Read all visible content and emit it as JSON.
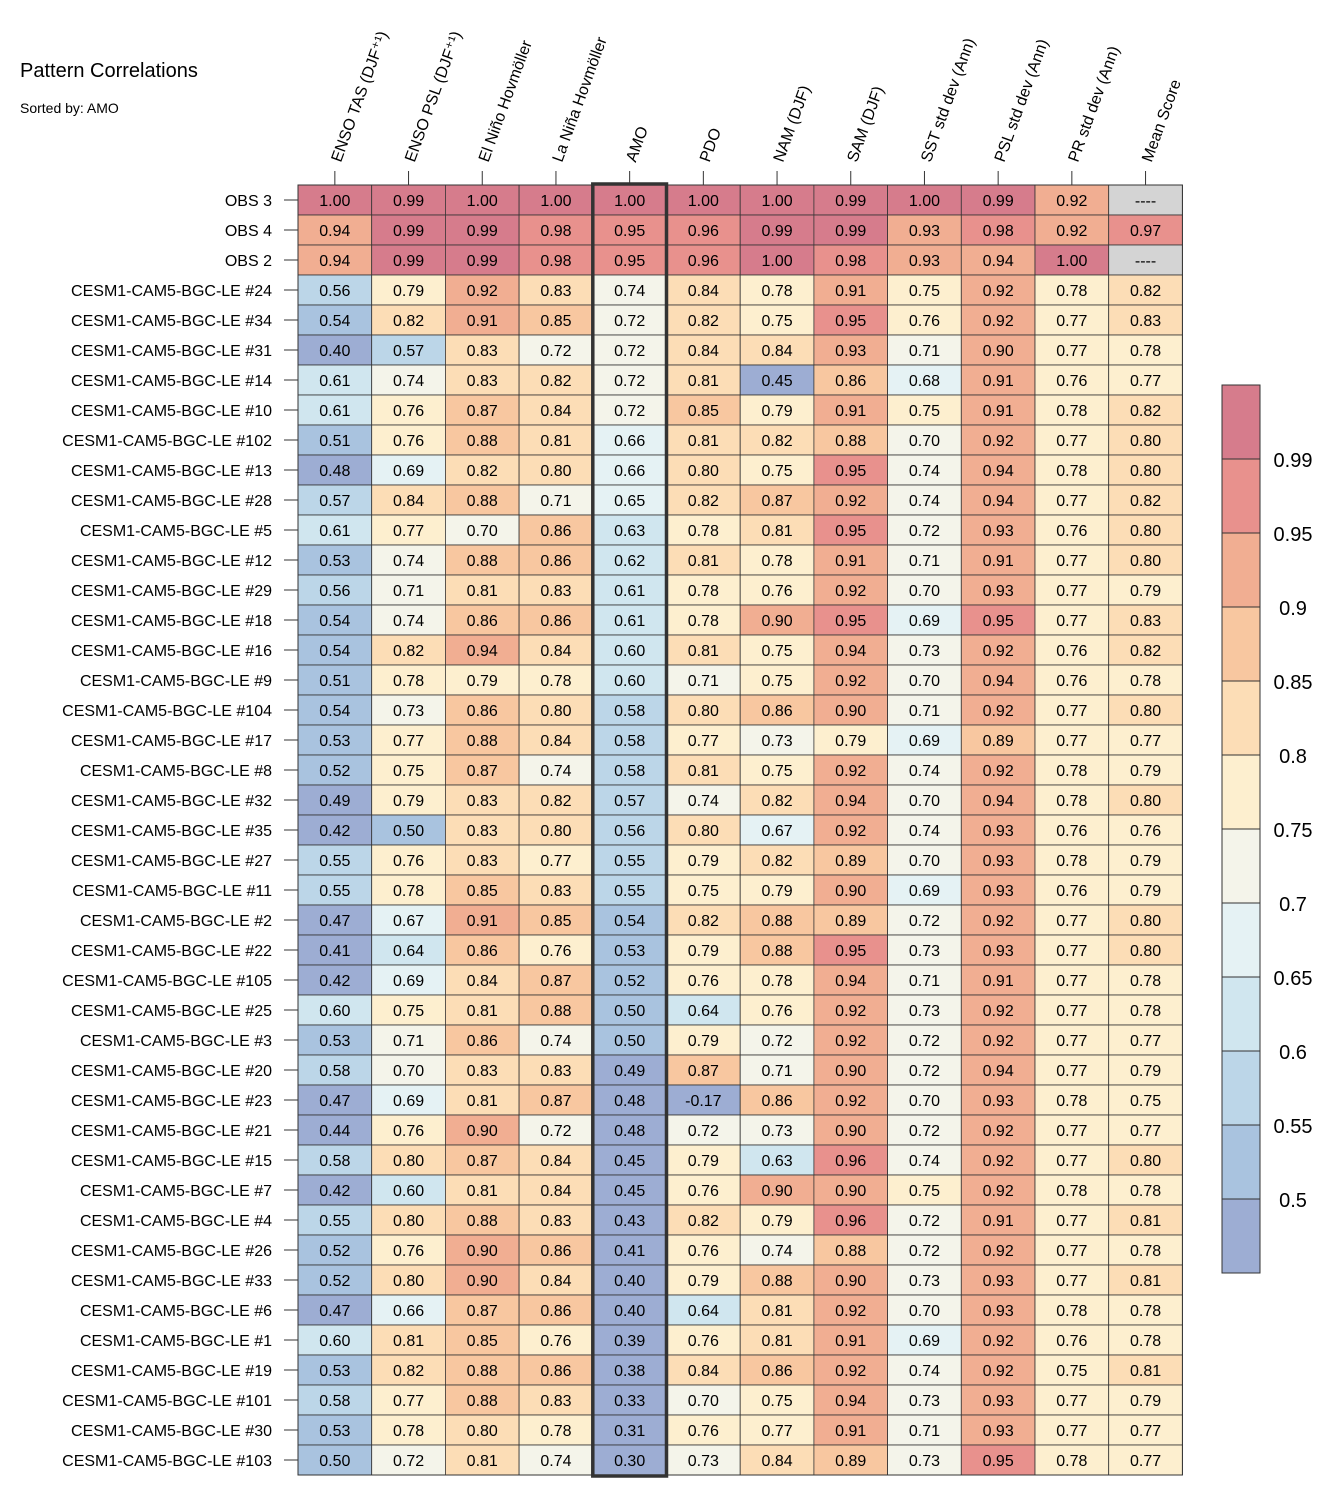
{
  "chart_data": {
    "type": "heatmap",
    "title": "Pattern Correlations",
    "subtitle": "Sorted by: AMO",
    "columns": [
      "ENSO TAS (DJF⁺¹)",
      "ENSO PSL (DJF⁺¹)",
      "El Niño Hovmöller",
      "La Niña Hovmöller",
      "AMO",
      "PDO",
      "NAM (DJF)",
      "SAM (DJF)",
      "SST std dev (Ann)",
      "PSL std dev (Ann)",
      "PR std dev (Ann)",
      "Mean Score"
    ],
    "highlighted_column": "AMO",
    "rows": [
      {
        "label": "OBS 3",
        "values": [
          "1.00",
          "0.99",
          "1.00",
          "1.00",
          "1.00",
          "1.00",
          "1.00",
          "0.99",
          "1.00",
          "0.99",
          "0.92",
          "----"
        ]
      },
      {
        "label": "OBS 4",
        "values": [
          "0.94",
          "0.99",
          "0.99",
          "0.98",
          "0.95",
          "0.96",
          "0.99",
          "0.99",
          "0.93",
          "0.98",
          "0.92",
          "0.97"
        ]
      },
      {
        "label": "OBS 2",
        "values": [
          "0.94",
          "0.99",
          "0.99",
          "0.98",
          "0.95",
          "0.96",
          "1.00",
          "0.98",
          "0.93",
          "0.94",
          "1.00",
          "----"
        ]
      },
      {
        "label": "CESM1-CAM5-BGC-LE #24",
        "values": [
          "0.56",
          "0.79",
          "0.92",
          "0.83",
          "0.74",
          "0.84",
          "0.78",
          "0.91",
          "0.75",
          "0.92",
          "0.78",
          "0.82"
        ]
      },
      {
        "label": "CESM1-CAM5-BGC-LE #34",
        "values": [
          "0.54",
          "0.82",
          "0.91",
          "0.85",
          "0.72",
          "0.82",
          "0.75",
          "0.95",
          "0.76",
          "0.92",
          "0.77",
          "0.83"
        ]
      },
      {
        "label": "CESM1-CAM5-BGC-LE #31",
        "values": [
          "0.40",
          "0.57",
          "0.83",
          "0.72",
          "0.72",
          "0.84",
          "0.84",
          "0.93",
          "0.71",
          "0.90",
          "0.77",
          "0.78"
        ]
      },
      {
        "label": "CESM1-CAM5-BGC-LE #14",
        "values": [
          "0.61",
          "0.74",
          "0.83",
          "0.82",
          "0.72",
          "0.81",
          "0.45",
          "0.86",
          "0.68",
          "0.91",
          "0.76",
          "0.77"
        ]
      },
      {
        "label": "CESM1-CAM5-BGC-LE #10",
        "values": [
          "0.61",
          "0.76",
          "0.87",
          "0.84",
          "0.72",
          "0.85",
          "0.79",
          "0.91",
          "0.75",
          "0.91",
          "0.78",
          "0.82"
        ]
      },
      {
        "label": "CESM1-CAM5-BGC-LE #102",
        "values": [
          "0.51",
          "0.76",
          "0.88",
          "0.81",
          "0.66",
          "0.81",
          "0.82",
          "0.88",
          "0.70",
          "0.92",
          "0.77",
          "0.80"
        ]
      },
      {
        "label": "CESM1-CAM5-BGC-LE #13",
        "values": [
          "0.48",
          "0.69",
          "0.82",
          "0.80",
          "0.66",
          "0.80",
          "0.75",
          "0.95",
          "0.74",
          "0.94",
          "0.78",
          "0.80"
        ]
      },
      {
        "label": "CESM1-CAM5-BGC-LE #28",
        "values": [
          "0.57",
          "0.84",
          "0.88",
          "0.71",
          "0.65",
          "0.82",
          "0.87",
          "0.92",
          "0.74",
          "0.94",
          "0.77",
          "0.82"
        ]
      },
      {
        "label": "CESM1-CAM5-BGC-LE #5",
        "values": [
          "0.61",
          "0.77",
          "0.70",
          "0.86",
          "0.63",
          "0.78",
          "0.81",
          "0.95",
          "0.72",
          "0.93",
          "0.76",
          "0.80"
        ]
      },
      {
        "label": "CESM1-CAM5-BGC-LE #12",
        "values": [
          "0.53",
          "0.74",
          "0.88",
          "0.86",
          "0.62",
          "0.81",
          "0.78",
          "0.91",
          "0.71",
          "0.91",
          "0.77",
          "0.80"
        ]
      },
      {
        "label": "CESM1-CAM5-BGC-LE #29",
        "values": [
          "0.56",
          "0.71",
          "0.81",
          "0.83",
          "0.61",
          "0.78",
          "0.76",
          "0.92",
          "0.70",
          "0.93",
          "0.77",
          "0.79"
        ]
      },
      {
        "label": "CESM1-CAM5-BGC-LE #18",
        "values": [
          "0.54",
          "0.74",
          "0.86",
          "0.86",
          "0.61",
          "0.78",
          "0.90",
          "0.95",
          "0.69",
          "0.95",
          "0.77",
          "0.83"
        ]
      },
      {
        "label": "CESM1-CAM5-BGC-LE #16",
        "values": [
          "0.54",
          "0.82",
          "0.94",
          "0.84",
          "0.60",
          "0.81",
          "0.75",
          "0.94",
          "0.73",
          "0.92",
          "0.76",
          "0.82"
        ]
      },
      {
        "label": "CESM1-CAM5-BGC-LE #9",
        "values": [
          "0.51",
          "0.78",
          "0.79",
          "0.78",
          "0.60",
          "0.71",
          "0.75",
          "0.92",
          "0.70",
          "0.94",
          "0.76",
          "0.78"
        ]
      },
      {
        "label": "CESM1-CAM5-BGC-LE #104",
        "values": [
          "0.54",
          "0.73",
          "0.86",
          "0.80",
          "0.58",
          "0.80",
          "0.86",
          "0.90",
          "0.71",
          "0.92",
          "0.77",
          "0.80"
        ]
      },
      {
        "label": "CESM1-CAM5-BGC-LE #17",
        "values": [
          "0.53",
          "0.77",
          "0.88",
          "0.84",
          "0.58",
          "0.77",
          "0.73",
          "0.79",
          "0.69",
          "0.89",
          "0.77",
          "0.77"
        ]
      },
      {
        "label": "CESM1-CAM5-BGC-LE #8",
        "values": [
          "0.52",
          "0.75",
          "0.87",
          "0.74",
          "0.58",
          "0.81",
          "0.75",
          "0.92",
          "0.74",
          "0.92",
          "0.78",
          "0.79"
        ]
      },
      {
        "label": "CESM1-CAM5-BGC-LE #32",
        "values": [
          "0.49",
          "0.79",
          "0.83",
          "0.82",
          "0.57",
          "0.74",
          "0.82",
          "0.94",
          "0.70",
          "0.94",
          "0.78",
          "0.80"
        ]
      },
      {
        "label": "CESM1-CAM5-BGC-LE #35",
        "values": [
          "0.42",
          "0.50",
          "0.83",
          "0.80",
          "0.56",
          "0.80",
          "0.67",
          "0.92",
          "0.74",
          "0.93",
          "0.76",
          "0.76"
        ]
      },
      {
        "label": "CESM1-CAM5-BGC-LE #27",
        "values": [
          "0.55",
          "0.76",
          "0.83",
          "0.77",
          "0.55",
          "0.79",
          "0.82",
          "0.89",
          "0.70",
          "0.93",
          "0.78",
          "0.79"
        ]
      },
      {
        "label": "CESM1-CAM5-BGC-LE #11",
        "values": [
          "0.55",
          "0.78",
          "0.85",
          "0.83",
          "0.55",
          "0.75",
          "0.79",
          "0.90",
          "0.69",
          "0.93",
          "0.76",
          "0.79"
        ]
      },
      {
        "label": "CESM1-CAM5-BGC-LE #2",
        "values": [
          "0.47",
          "0.67",
          "0.91",
          "0.85",
          "0.54",
          "0.82",
          "0.88",
          "0.89",
          "0.72",
          "0.92",
          "0.77",
          "0.80"
        ]
      },
      {
        "label": "CESM1-CAM5-BGC-LE #22",
        "values": [
          "0.41",
          "0.64",
          "0.86",
          "0.76",
          "0.53",
          "0.79",
          "0.88",
          "0.95",
          "0.73",
          "0.93",
          "0.77",
          "0.80"
        ]
      },
      {
        "label": "CESM1-CAM5-BGC-LE #105",
        "values": [
          "0.42",
          "0.69",
          "0.84",
          "0.87",
          "0.52",
          "0.76",
          "0.78",
          "0.94",
          "0.71",
          "0.91",
          "0.77",
          "0.78"
        ]
      },
      {
        "label": "CESM1-CAM5-BGC-LE #25",
        "values": [
          "0.60",
          "0.75",
          "0.81",
          "0.88",
          "0.50",
          "0.64",
          "0.76",
          "0.92",
          "0.73",
          "0.92",
          "0.77",
          "0.78"
        ]
      },
      {
        "label": "CESM1-CAM5-BGC-LE #3",
        "values": [
          "0.53",
          "0.71",
          "0.86",
          "0.74",
          "0.50",
          "0.79",
          "0.72",
          "0.92",
          "0.72",
          "0.92",
          "0.77",
          "0.77"
        ]
      },
      {
        "label": "CESM1-CAM5-BGC-LE #20",
        "values": [
          "0.58",
          "0.70",
          "0.83",
          "0.83",
          "0.49",
          "0.87",
          "0.71",
          "0.90",
          "0.72",
          "0.94",
          "0.77",
          "0.79"
        ]
      },
      {
        "label": "CESM1-CAM5-BGC-LE #23",
        "values": [
          "0.47",
          "0.69",
          "0.81",
          "0.87",
          "0.48",
          "-0.17",
          "0.86",
          "0.92",
          "0.70",
          "0.93",
          "0.78",
          "0.75"
        ]
      },
      {
        "label": "CESM1-CAM5-BGC-LE #21",
        "values": [
          "0.44",
          "0.76",
          "0.90",
          "0.72",
          "0.48",
          "0.72",
          "0.73",
          "0.90",
          "0.72",
          "0.92",
          "0.77",
          "0.77"
        ]
      },
      {
        "label": "CESM1-CAM5-BGC-LE #15",
        "values": [
          "0.58",
          "0.80",
          "0.87",
          "0.84",
          "0.45",
          "0.79",
          "0.63",
          "0.96",
          "0.74",
          "0.92",
          "0.77",
          "0.80"
        ]
      },
      {
        "label": "CESM1-CAM5-BGC-LE #7",
        "values": [
          "0.42",
          "0.60",
          "0.81",
          "0.84",
          "0.45",
          "0.76",
          "0.90",
          "0.90",
          "0.75",
          "0.92",
          "0.78",
          "0.78"
        ]
      },
      {
        "label": "CESM1-CAM5-BGC-LE #4",
        "values": [
          "0.55",
          "0.80",
          "0.88",
          "0.83",
          "0.43",
          "0.82",
          "0.79",
          "0.96",
          "0.72",
          "0.91",
          "0.77",
          "0.81"
        ]
      },
      {
        "label": "CESM1-CAM5-BGC-LE #26",
        "values": [
          "0.52",
          "0.76",
          "0.90",
          "0.86",
          "0.41",
          "0.76",
          "0.74",
          "0.88",
          "0.72",
          "0.92",
          "0.77",
          "0.78"
        ]
      },
      {
        "label": "CESM1-CAM5-BGC-LE #33",
        "values": [
          "0.52",
          "0.80",
          "0.90",
          "0.84",
          "0.40",
          "0.79",
          "0.88",
          "0.90",
          "0.73",
          "0.93",
          "0.77",
          "0.81"
        ]
      },
      {
        "label": "CESM1-CAM5-BGC-LE #6",
        "values": [
          "0.47",
          "0.66",
          "0.87",
          "0.86",
          "0.40",
          "0.64",
          "0.81",
          "0.92",
          "0.70",
          "0.93",
          "0.78",
          "0.78"
        ]
      },
      {
        "label": "CESM1-CAM5-BGC-LE #1",
        "values": [
          "0.60",
          "0.81",
          "0.85",
          "0.76",
          "0.39",
          "0.76",
          "0.81",
          "0.91",
          "0.69",
          "0.92",
          "0.76",
          "0.78"
        ]
      },
      {
        "label": "CESM1-CAM5-BGC-LE #19",
        "values": [
          "0.53",
          "0.82",
          "0.88",
          "0.86",
          "0.38",
          "0.84",
          "0.86",
          "0.92",
          "0.74",
          "0.92",
          "0.75",
          "0.81"
        ]
      },
      {
        "label": "CESM1-CAM5-BGC-LE #101",
        "values": [
          "0.58",
          "0.77",
          "0.88",
          "0.83",
          "0.33",
          "0.70",
          "0.75",
          "0.94",
          "0.73",
          "0.93",
          "0.77",
          "0.79"
        ]
      },
      {
        "label": "CESM1-CAM5-BGC-LE #30",
        "values": [
          "0.53",
          "0.78",
          "0.80",
          "0.78",
          "0.31",
          "0.76",
          "0.77",
          "0.91",
          "0.71",
          "0.93",
          "0.77",
          "0.77"
        ]
      },
      {
        "label": "CESM1-CAM5-BGC-LE #103",
        "values": [
          "0.50",
          "0.72",
          "0.81",
          "0.74",
          "0.30",
          "0.73",
          "0.84",
          "0.89",
          "0.73",
          "0.95",
          "0.78",
          "0.77"
        ]
      }
    ],
    "colorbar": {
      "boundaries": [
        0.5,
        0.55,
        0.6,
        0.65,
        0.7,
        0.75,
        0.8,
        0.85,
        0.9,
        0.95,
        0.99
      ],
      "tick_labels": [
        "0.5",
        "0.55",
        "0.6",
        "0.65",
        "0.7",
        "0.75",
        "0.8",
        "0.85",
        "0.9",
        "0.95",
        "0.99"
      ],
      "colors": [
        "#9DADD3",
        "#A9C3DF",
        "#BCD6E8",
        "#D0E6EF",
        "#E5F2F4",
        "#F4F4EA",
        "#FDEFCF",
        "#FCDDB6",
        "#F8C7A0",
        "#F1AE92",
        "#E8918D",
        "#D67C8C"
      ],
      "missing_color": "#D4D4D4"
    }
  }
}
